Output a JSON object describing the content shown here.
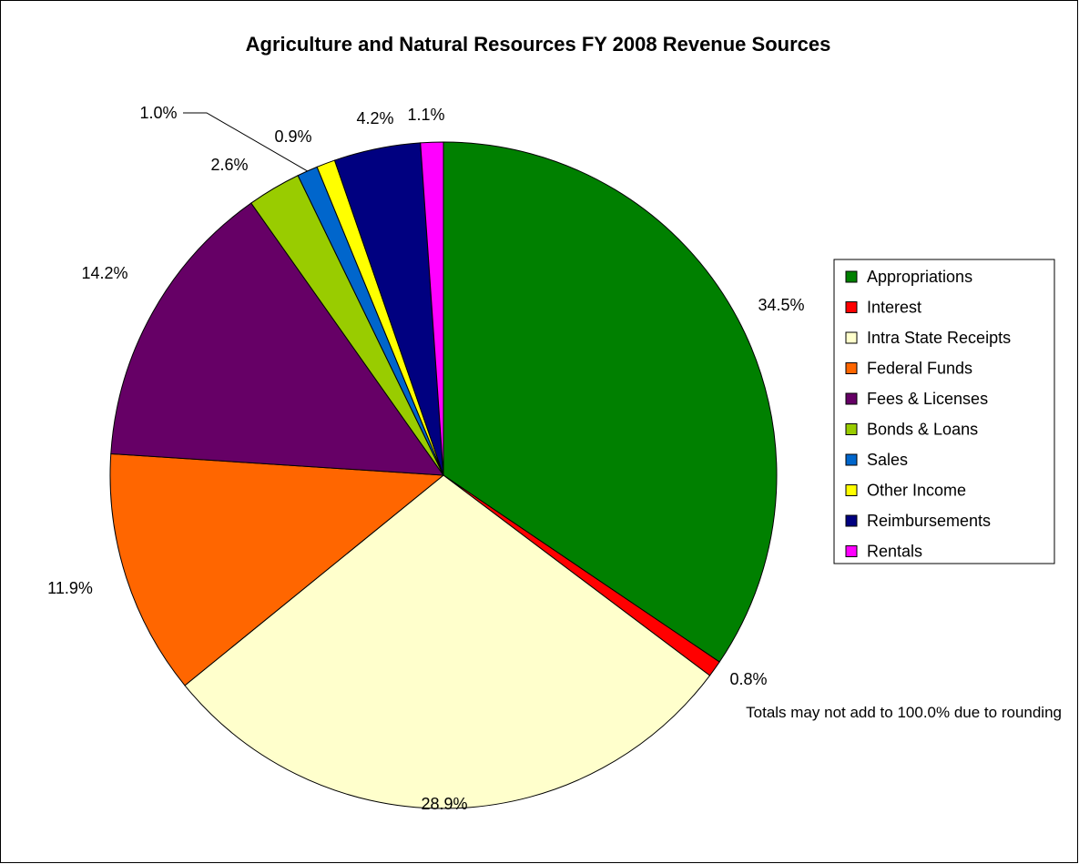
{
  "chart_data": {
    "type": "pie",
    "title": "Agriculture and Natural Resources FY 2008 Revenue Sources",
    "start_angle_deg": 0,
    "direction": "clockwise",
    "legend_position": "right",
    "slices": [
      {
        "label": "Appropriations",
        "value": 34.5,
        "value_label": "34.5%",
        "color": "#008000"
      },
      {
        "label": "Interest",
        "value": 0.8,
        "value_label": "0.8%",
        "color": "#FF0000"
      },
      {
        "label": "Intra State Receipts",
        "value": 28.9,
        "value_label": "28.9%",
        "color": "#FFFFCC"
      },
      {
        "label": "Federal Funds",
        "value": 11.9,
        "value_label": "11.9%",
        "color": "#FF6600"
      },
      {
        "label": "Fees & Licenses",
        "value": 14.2,
        "value_label": "14.2%",
        "color": "#660066"
      },
      {
        "label": "Bonds & Loans",
        "value": 2.6,
        "value_label": "2.6%",
        "color": "#99CC00"
      },
      {
        "label": "Sales",
        "value": 1.0,
        "value_label": "1.0%",
        "color": "#0066CC"
      },
      {
        "label": "Other Income",
        "value": 0.9,
        "value_label": "0.9%",
        "color": "#FFFF00"
      },
      {
        "label": "Reimbursements",
        "value": 4.2,
        "value_label": "4.2%",
        "color": "#000080"
      },
      {
        "label": "Rentals",
        "value": 1.1,
        "value_label": "1.1%",
        "color": "#FF00FF"
      }
    ],
    "annotation": "Totals may not add to 100.0% due to rounding"
  }
}
